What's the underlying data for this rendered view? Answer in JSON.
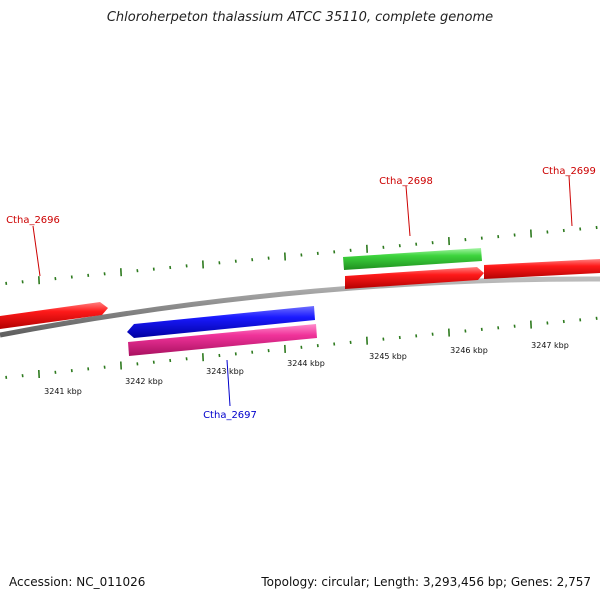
{
  "title": "Chloroherpeton thalassium ATCC 35110, complete genome",
  "footer": {
    "accession": "Accession: NC_011026",
    "summary": "Topology: circular; Length: 3,293,456 bp; Genes: 2,757"
  },
  "colors": {
    "backbone": "#7f7f7f",
    "tick": "#2d7a1e",
    "label_red": "#cc0000",
    "label_blue": "#0000cc"
  },
  "scale_labels": [
    "3241 kbp",
    "3242 kbp",
    "3243 kbp",
    "3244 kbp",
    "3245 kbp",
    "3246 kbp",
    "3247 kbp"
  ],
  "features": [
    {
      "name": "red-gene-left",
      "color": "#ee1111",
      "strand": "forward",
      "lane": "inner-top"
    },
    {
      "name": "blue-gene",
      "color": "#1010dd",
      "strand": "reverse",
      "lane": "inner-bottom"
    },
    {
      "name": "pink-gene",
      "color": "#e0308f",
      "strand": "none",
      "lane": "inner-bottom-2"
    },
    {
      "name": "green-gene",
      "color": "#33cc33",
      "strand": "none",
      "lane": "outer-top"
    },
    {
      "name": "red-gene-mid",
      "color": "#ee1111",
      "strand": "forward",
      "lane": "outer-bottom"
    },
    {
      "name": "red-gene-right",
      "color": "#ee1111",
      "strand": "none",
      "lane": "outer-bottom"
    }
  ],
  "gene_labels": [
    {
      "text": "Ctha_2696",
      "color": "#cc0000"
    },
    {
      "text": "Ctha_2697",
      "color": "#0000cc"
    },
    {
      "text": "Ctha_2698",
      "color": "#cc0000"
    },
    {
      "text": "Ctha_2699",
      "color": "#cc0000"
    }
  ]
}
